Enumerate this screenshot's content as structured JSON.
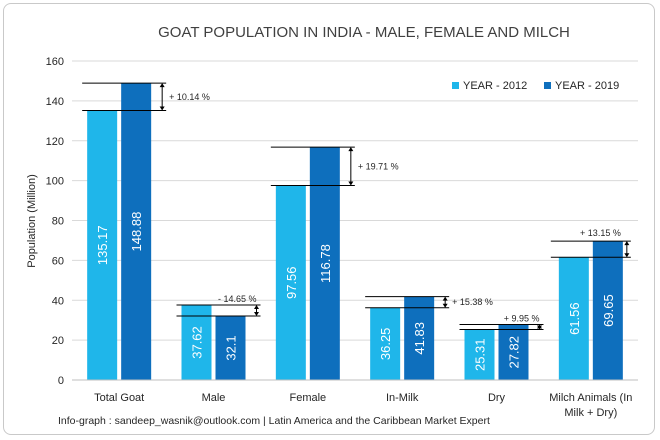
{
  "chart_data": {
    "type": "bar",
    "title": "GOAT POPULATION IN INDIA - MALE, FEMALE AND MILCH",
    "ylabel": "Population (Million)",
    "xlabel": "",
    "ylim": [
      0,
      160
    ],
    "yticks": [
      0,
      20,
      40,
      60,
      80,
      100,
      120,
      140,
      160
    ],
    "grid": true,
    "legend_position": "top-right",
    "categories": [
      [
        "Total Goat"
      ],
      [
        "Male"
      ],
      [
        "Female"
      ],
      [
        "In-Milk"
      ],
      [
        "Dry"
      ],
      [
        "Milch Animals (In",
        "Milk + Dry)"
      ]
    ],
    "series": [
      {
        "name": "YEAR - 2012",
        "color": "#1fb6ea",
        "values": [
          135.17,
          37.62,
          97.56,
          36.25,
          25.31,
          61.56
        ],
        "labels": [
          "135.17",
          "37.62",
          "97.56",
          "36.25",
          "25.31",
          "61.56"
        ]
      },
      {
        "name": "YEAR - 2019",
        "color": "#0e6fbd",
        "values": [
          148.88,
          32.1,
          116.78,
          41.83,
          27.82,
          69.65
        ],
        "labels": [
          "148.88",
          "32.1",
          "116.78",
          "41.83",
          "27.82",
          "69.65"
        ]
      }
    ],
    "annotations": [
      "+ 10.14 %",
      "- 14.65 %",
      "+ 19.71 %",
      "+ 15.38 %",
      "+ 9.95 %",
      "+ 13.15 %"
    ]
  },
  "footer": "Info-graph : sandeep_wasnik@outlook.com | Latin America and the Caribbean Market Expert"
}
